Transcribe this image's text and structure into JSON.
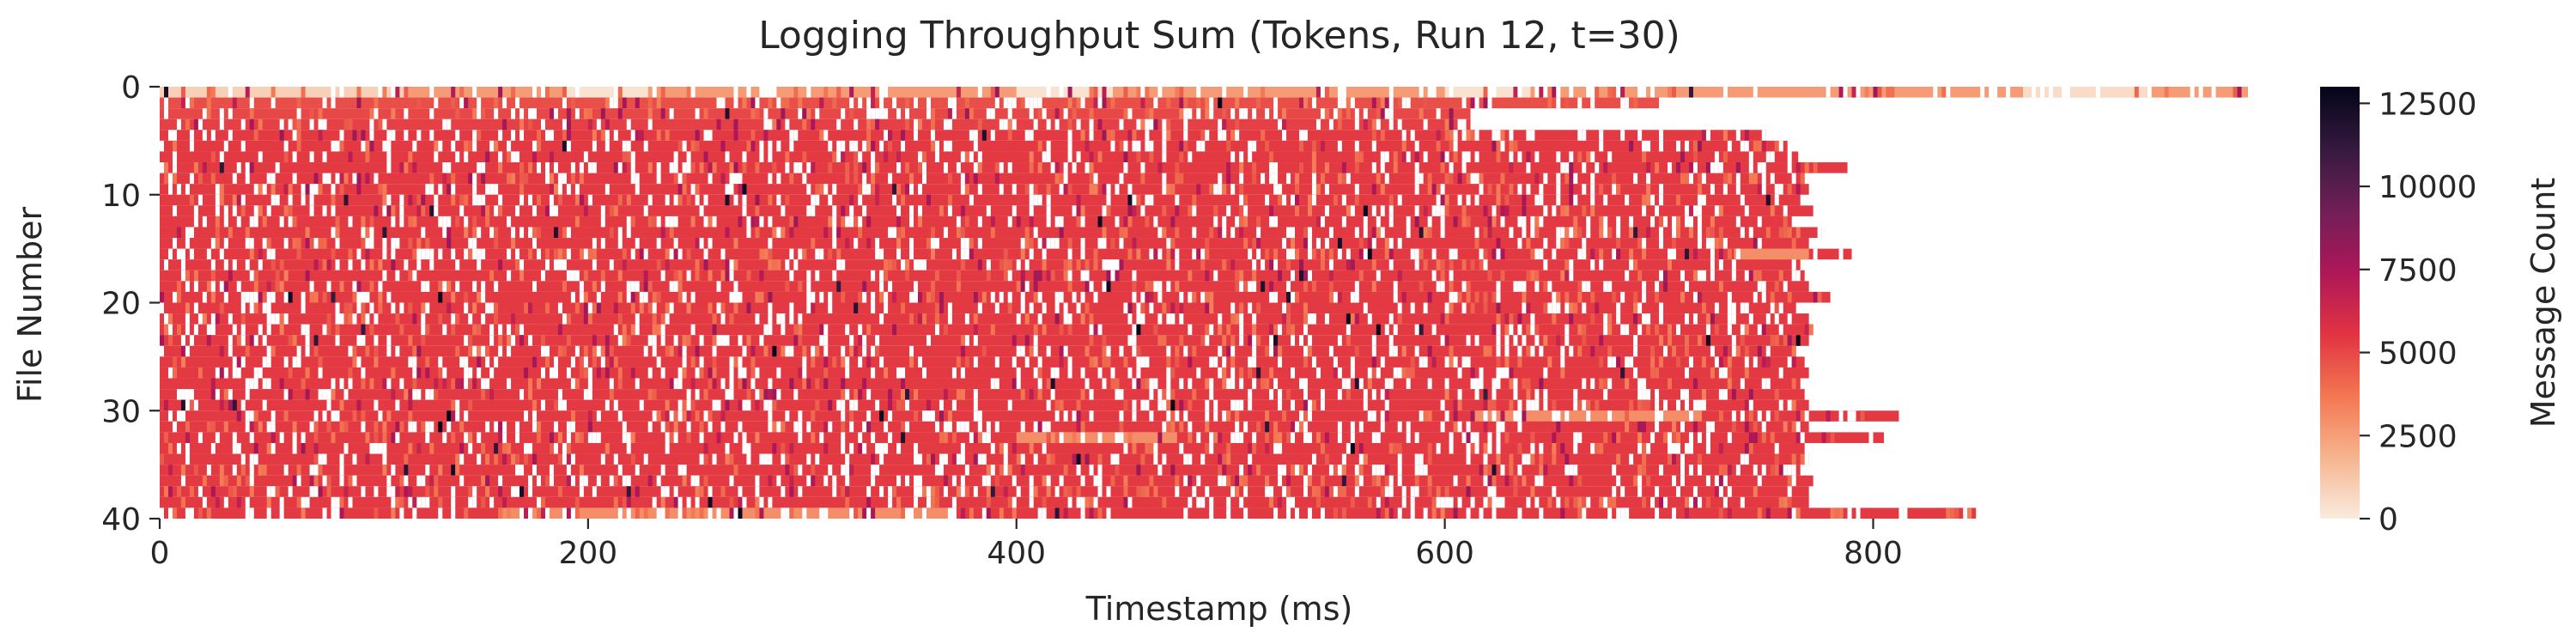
{
  "chart_data": {
    "type": "heatmap",
    "title": "Logging Throughput Sum (Tokens, Run 12, t=30)",
    "xlabel": "Timestamp (ms)",
    "ylabel": "File Number",
    "xlim": [
      0,
      975
    ],
    "ylim": [
      40,
      0
    ],
    "x_ticks": [
      0,
      200,
      400,
      600,
      800
    ],
    "y_ticks": [
      0,
      10,
      20,
      30,
      40
    ],
    "colorbar": {
      "label": "Message Count",
      "range": [
        0,
        13000
      ],
      "ticks": [
        0,
        2500,
        5000,
        7500,
        10000,
        12500
      ],
      "colormap": "rocket_r",
      "colors": [
        "#faebdd",
        "#f6b48f",
        "#f37651",
        "#e13342",
        "#ad1759",
        "#701f57",
        "#35193e",
        "#03051a"
      ]
    },
    "cell_width_ms": 2,
    "typical_value": 5400,
    "rows": [
      {
        "file": 0,
        "end_ms": 975,
        "base_value": 2600,
        "light_segments": [
          [
            0,
            115,
            900
          ],
          [
            188,
            228,
            300
          ],
          [
            400,
            445,
            300
          ],
          [
            600,
            640,
            300
          ],
          [
            870,
            928,
            500
          ]
        ]
      },
      {
        "file": 1,
        "end_ms": 700,
        "base_value": 4800
      },
      {
        "file": 2,
        "end_ms": 612,
        "base_value": 5000
      },
      {
        "file": 3,
        "end_ms": 612,
        "base_value": 5200
      },
      {
        "file": 4,
        "end_ms": 750,
        "base_value": 5400
      },
      {
        "file": 5,
        "end_ms": 760,
        "base_value": 5400
      },
      {
        "file": 6,
        "end_ms": 765,
        "base_value": 5400
      },
      {
        "file": 7,
        "end_ms": 788,
        "base_value": 5400
      },
      {
        "file": 8,
        "end_ms": 768,
        "base_value": 5400
      },
      {
        "file": 9,
        "end_ms": 770,
        "base_value": 5400
      },
      {
        "file": 10,
        "end_ms": 766,
        "base_value": 5400
      },
      {
        "file": 11,
        "end_ms": 772,
        "base_value": 5400
      },
      {
        "file": 12,
        "end_ms": 762,
        "base_value": 5400
      },
      {
        "file": 13,
        "end_ms": 776,
        "base_value": 5400
      },
      {
        "file": 14,
        "end_ms": 770,
        "base_value": 5400
      },
      {
        "file": 15,
        "end_ms": 790,
        "base_value": 5400,
        "light_segments": [
          [
            735,
            770,
            3000
          ]
        ]
      },
      {
        "file": 16,
        "end_ms": 766,
        "base_value": 5400
      },
      {
        "file": 17,
        "end_ms": 768,
        "base_value": 5400
      },
      {
        "file": 18,
        "end_ms": 770,
        "base_value": 5400
      },
      {
        "file": 19,
        "end_ms": 780,
        "base_value": 5400
      },
      {
        "file": 20,
        "end_ms": 764,
        "base_value": 5400
      },
      {
        "file": 21,
        "end_ms": 770,
        "base_value": 5400
      },
      {
        "file": 22,
        "end_ms": 772,
        "base_value": 5400
      },
      {
        "file": 23,
        "end_ms": 770,
        "base_value": 5400
      },
      {
        "file": 24,
        "end_ms": 764,
        "base_value": 5400
      },
      {
        "file": 25,
        "end_ms": 768,
        "base_value": 5400
      },
      {
        "file": 26,
        "end_ms": 770,
        "base_value": 5400
      },
      {
        "file": 27,
        "end_ms": 766,
        "base_value": 5400
      },
      {
        "file": 28,
        "end_ms": 768,
        "base_value": 5400
      },
      {
        "file": 29,
        "end_ms": 770,
        "base_value": 5400
      },
      {
        "file": 30,
        "end_ms": 812,
        "base_value": 5400,
        "light_segments": [
          [
            612,
            720,
            3000
          ]
        ]
      },
      {
        "file": 31,
        "end_ms": 770,
        "base_value": 5400
      },
      {
        "file": 32,
        "end_ms": 805,
        "base_value": 5400,
        "light_segments": [
          [
            400,
            475,
            3000
          ]
        ]
      },
      {
        "file": 33,
        "end_ms": 768,
        "base_value": 5400
      },
      {
        "file": 34,
        "end_ms": 770,
        "base_value": 5400
      },
      {
        "file": 35,
        "end_ms": 766,
        "base_value": 5400
      },
      {
        "file": 36,
        "end_ms": 772,
        "base_value": 5400
      },
      {
        "file": 37,
        "end_ms": 770,
        "base_value": 5400
      },
      {
        "file": 38,
        "end_ms": 770,
        "base_value": 5400
      },
      {
        "file": 39,
        "end_ms": 848,
        "base_value": 5400,
        "light_segments": [
          [
            160,
            370,
            3000
          ]
        ]
      }
    ]
  }
}
